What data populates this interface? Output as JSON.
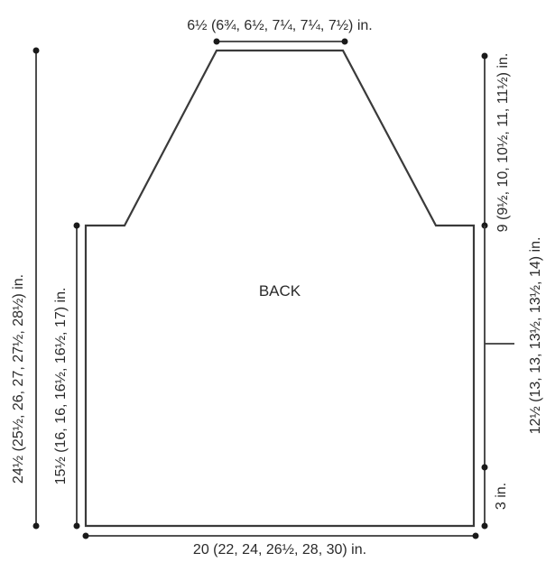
{
  "piece_label": "BACK",
  "measurements": {
    "neck_width": "6½ (6¾, 6½, 7¼, 7¼, 7½) in.",
    "total_length": "24½ (25½, 26, 27, 27½, 28½) in.",
    "length_to_armhole": "15½ (16, 16, 16½, 16½, 17) in.",
    "armhole_depth": "9 (9½, 10, 10½, 11, 11½) in.",
    "side_length": "12½ (13, 13, 13½, 13½, 14) in.",
    "hem": "3 in.",
    "width": "20 (22, 24, 26½, 28, 30) in."
  }
}
